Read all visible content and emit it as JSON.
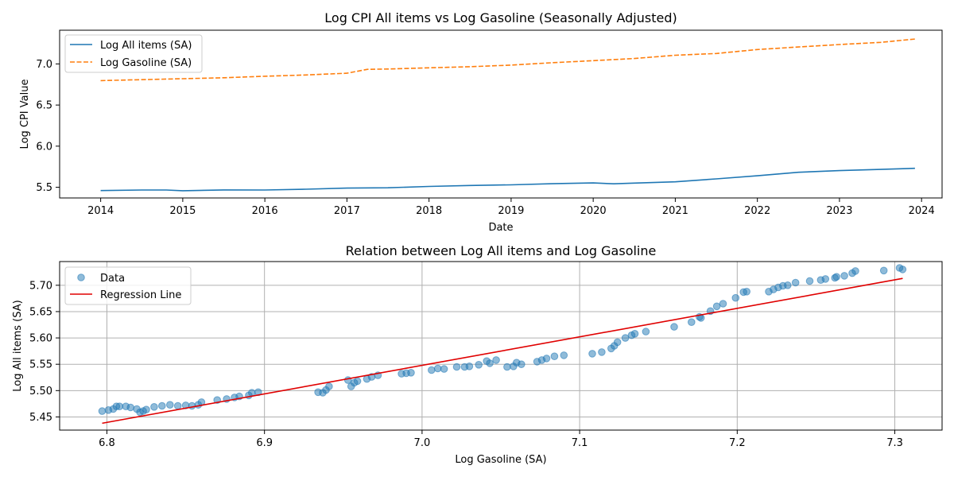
{
  "chart_data": [
    {
      "type": "line",
      "title": "Log CPI All items vs Log Gasoline (Seasonally Adjusted)",
      "xlabel": "Date",
      "ylabel": "Log CPI Value",
      "xlim": [
        2013.5,
        2024.25
      ],
      "ylim": [
        5.37,
        7.41
      ],
      "xticks": [
        2014,
        2015,
        2016,
        2017,
        2018,
        2019,
        2020,
        2021,
        2022,
        2023,
        2024
      ],
      "yticks": [
        5.5,
        6.0,
        6.5,
        7.0
      ],
      "ytick_labels": [
        "5.5",
        "6.0",
        "6.5",
        "7.0"
      ],
      "grid": false,
      "legend_position": "top-left",
      "series": [
        {
          "name": "Log All items (SA)",
          "color": "#1f77b4",
          "style": "solid",
          "points": [
            [
              2014.0,
              5.46
            ],
            [
              2014.5,
              5.467
            ],
            [
              2014.8,
              5.467
            ],
            [
              2015.0,
              5.458
            ],
            [
              2015.5,
              5.468
            ],
            [
              2016.0,
              5.467
            ],
            [
              2016.5,
              5.476
            ],
            [
              2017.0,
              5.49
            ],
            [
              2017.5,
              5.494
            ],
            [
              2018.0,
              5.51
            ],
            [
              2018.5,
              5.522
            ],
            [
              2019.0,
              5.53
            ],
            [
              2019.5,
              5.543
            ],
            [
              2020.0,
              5.553
            ],
            [
              2020.25,
              5.542
            ],
            [
              2020.5,
              5.551
            ],
            [
              2021.0,
              5.566
            ],
            [
              2021.5,
              5.602
            ],
            [
              2022.0,
              5.64
            ],
            [
              2022.5,
              5.682
            ],
            [
              2023.0,
              5.703
            ],
            [
              2023.5,
              5.717
            ],
            [
              2023.92,
              5.731
            ]
          ]
        },
        {
          "name": "Log Gasoline (SA)",
          "color": "#ff7f0e",
          "style": "dashed",
          "points": [
            [
              2014.0,
              6.797
            ],
            [
              2014.5,
              6.809
            ],
            [
              2015.0,
              6.82
            ],
            [
              2015.5,
              6.832
            ],
            [
              2016.0,
              6.85
            ],
            [
              2016.5,
              6.866
            ],
            [
              2017.0,
              6.887
            ],
            [
              2017.25,
              6.934
            ],
            [
              2017.5,
              6.938
            ],
            [
              2018.0,
              6.953
            ],
            [
              2018.5,
              6.966
            ],
            [
              2019.0,
              6.986
            ],
            [
              2019.5,
              7.015
            ],
            [
              2020.0,
              7.04
            ],
            [
              2020.5,
              7.066
            ],
            [
              2021.0,
              7.105
            ],
            [
              2021.5,
              7.127
            ],
            [
              2022.0,
              7.175
            ],
            [
              2022.5,
              7.206
            ],
            [
              2023.0,
              7.236
            ],
            [
              2023.5,
              7.262
            ],
            [
              2023.92,
              7.303
            ]
          ]
        }
      ]
    },
    {
      "type": "scatter",
      "title": "Relation between Log All items and Log Gasoline",
      "xlabel": "Log Gasoline (SA)",
      "ylabel": "Log All items (SA)",
      "xlim": [
        6.77,
        7.33
      ],
      "ylim": [
        5.425,
        5.745
      ],
      "xticks": [
        6.8,
        6.9,
        7.0,
        7.1,
        7.2,
        7.3
      ],
      "xtick_labels": [
        "6.8",
        "6.9",
        "7.0",
        "7.1",
        "7.2",
        "7.3"
      ],
      "yticks": [
        5.45,
        5.5,
        5.55,
        5.6,
        5.65,
        5.7
      ],
      "ytick_labels": [
        "5.45",
        "5.50",
        "5.55",
        "5.60",
        "5.65",
        "5.70"
      ],
      "grid": true,
      "legend_position": "top-left",
      "scatter_color": "#1f77b4",
      "regression_color": "#e00000",
      "scatter_label": "Data",
      "regression_label": "Regression Line",
      "regression": {
        "x": [
          6.797,
          7.305
        ],
        "y": [
          5.438,
          5.713
        ]
      },
      "points": [
        [
          6.797,
          5.461
        ],
        [
          6.801,
          5.463
        ],
        [
          6.804,
          5.465
        ],
        [
          6.806,
          5.47
        ],
        [
          6.808,
          5.47
        ],
        [
          6.812,
          5.47
        ],
        [
          6.815,
          5.468
        ],
        [
          6.819,
          5.465
        ],
        [
          6.821,
          5.459
        ],
        [
          6.823,
          5.461
        ],
        [
          6.825,
          5.464
        ],
        [
          6.83,
          5.469
        ],
        [
          6.835,
          5.471
        ],
        [
          6.84,
          5.473
        ],
        [
          6.845,
          5.471
        ],
        [
          6.85,
          5.472
        ],
        [
          6.854,
          5.471
        ],
        [
          6.858,
          5.473
        ],
        [
          6.86,
          5.478
        ],
        [
          6.87,
          5.482
        ],
        [
          6.876,
          5.484
        ],
        [
          6.881,
          5.487
        ],
        [
          6.884,
          5.489
        ],
        [
          6.89,
          5.491
        ],
        [
          6.892,
          5.496
        ],
        [
          6.896,
          5.497
        ],
        [
          6.934,
          5.497
        ],
        [
          6.937,
          5.496
        ],
        [
          6.939,
          5.501
        ],
        [
          6.941,
          5.508
        ],
        [
          6.953,
          5.52
        ],
        [
          6.955,
          5.508
        ],
        [
          6.957,
          5.515
        ],
        [
          6.959,
          5.518
        ],
        [
          6.965,
          5.522
        ],
        [
          6.968,
          5.526
        ],
        [
          6.972,
          5.529
        ],
        [
          6.987,
          5.532
        ],
        [
          6.99,
          5.533
        ],
        [
          6.993,
          5.534
        ],
        [
          7.006,
          5.539
        ],
        [
          7.01,
          5.542
        ],
        [
          7.014,
          5.541
        ],
        [
          7.022,
          5.545
        ],
        [
          7.027,
          5.545
        ],
        [
          7.03,
          5.546
        ],
        [
          7.036,
          5.549
        ],
        [
          7.041,
          5.556
        ],
        [
          7.043,
          5.552
        ],
        [
          7.047,
          5.558
        ],
        [
          7.054,
          5.545
        ],
        [
          7.058,
          5.546
        ],
        [
          7.06,
          5.553
        ],
        [
          7.063,
          5.55
        ],
        [
          7.073,
          5.555
        ],
        [
          7.076,
          5.558
        ],
        [
          7.079,
          5.561
        ],
        [
          7.084,
          5.565
        ],
        [
          7.09,
          5.567
        ],
        [
          7.108,
          5.57
        ],
        [
          7.114,
          5.573
        ],
        [
          7.12,
          5.58
        ],
        [
          7.122,
          5.585
        ],
        [
          7.124,
          5.592
        ],
        [
          7.129,
          5.6
        ],
        [
          7.133,
          5.605
        ],
        [
          7.135,
          5.608
        ],
        [
          7.142,
          5.612
        ],
        [
          7.16,
          5.621
        ],
        [
          7.171,
          5.63
        ],
        [
          7.176,
          5.64
        ],
        [
          7.177,
          5.638
        ],
        [
          7.183,
          5.651
        ],
        [
          7.187,
          5.66
        ],
        [
          7.191,
          5.665
        ],
        [
          7.199,
          5.676
        ],
        [
          7.204,
          5.687
        ],
        [
          7.206,
          5.688
        ],
        [
          7.22,
          5.688
        ],
        [
          7.223,
          5.692
        ],
        [
          7.226,
          5.696
        ],
        [
          7.229,
          5.699
        ],
        [
          7.232,
          5.7
        ],
        [
          7.237,
          5.705
        ],
        [
          7.246,
          5.708
        ],
        [
          7.253,
          5.71
        ],
        [
          7.256,
          5.712
        ],
        [
          7.262,
          5.714
        ],
        [
          7.263,
          5.716
        ],
        [
          7.268,
          5.718
        ],
        [
          7.273,
          5.723
        ],
        [
          7.275,
          5.727
        ],
        [
          7.293,
          5.728
        ],
        [
          7.303,
          5.733
        ],
        [
          7.305,
          5.73
        ]
      ]
    }
  ]
}
